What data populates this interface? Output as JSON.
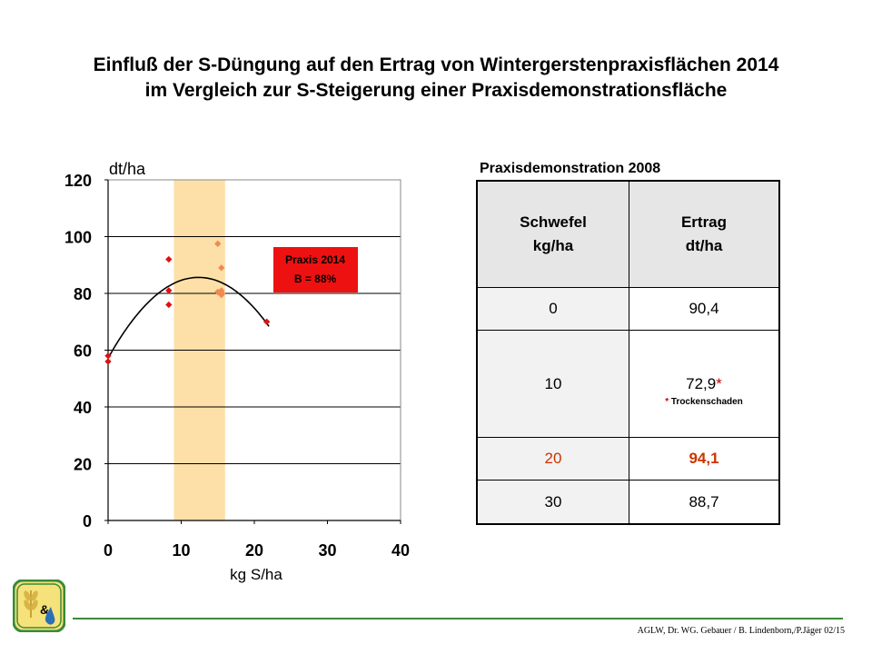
{
  "page": {
    "title_lines": [
      "Einfluß der S-Düngung auf den Ertrag von Wintergerstenpraxisflächen 2014",
      "im Vergleich zur S-Steigerung einer Praxisdemonstrationsfläche"
    ],
    "credit": "AGLW, Dr. WG. Gebauer / B. Lindenborn,/P.Jäger 02/15",
    "accent_green": "#3a8a3a"
  },
  "chart_data": {
    "type": "scatter",
    "xlabel": "kg S/ha",
    "ylabel": "dt/ha",
    "xlim": [
      0,
      40
    ],
    "ylim": [
      0,
      120
    ],
    "x_ticks": [
      0,
      10,
      20,
      30,
      40
    ],
    "y_ticks": [
      0,
      20,
      40,
      60,
      80,
      100,
      120
    ],
    "grid": "horizontal",
    "highlight_band": {
      "x": [
        9,
        16
      ],
      "color": "#fde0a8"
    },
    "annotation": {
      "lines": [
        "Praxis 2014",
        "B = 88%"
      ],
      "bg": "#ee1111"
    },
    "series": [
      {
        "color": "#dd1111",
        "points": [
          [
            0,
            58
          ],
          [
            0,
            56
          ],
          [
            8.3,
            92
          ],
          [
            8.3,
            81
          ],
          [
            8.3,
            76
          ],
          [
            21.7,
            70
          ]
        ]
      },
      {
        "color": "#f08a50",
        "points": [
          [
            15,
            97.5
          ],
          [
            15.5,
            89
          ],
          [
            15,
            80.5
          ],
          [
            15.5,
            81
          ],
          [
            15.6,
            80
          ],
          [
            15.5,
            79.5
          ]
        ]
      }
    ],
    "trendline": {
      "type": "polynomial",
      "x_range": [
        0,
        22
      ],
      "coefficients": [
        57.2,
        4.6,
        -0.186
      ],
      "color": "#000000"
    }
  },
  "table": {
    "caption": "Praxisdemonstration 2008",
    "header": [
      [
        "Schwefel",
        "kg/ha"
      ],
      [
        "Ertrag",
        "dt/ha"
      ]
    ],
    "rows": [
      {
        "s": "0",
        "e": "90,4"
      },
      {
        "s": "10",
        "e": "72,9",
        "e_mark": "*",
        "note_star": "*",
        "note": " Trockenschaden"
      },
      {
        "s": "20",
        "e": "94,1",
        "highlight": true
      },
      {
        "s": "30",
        "e": "88,7"
      }
    ]
  }
}
